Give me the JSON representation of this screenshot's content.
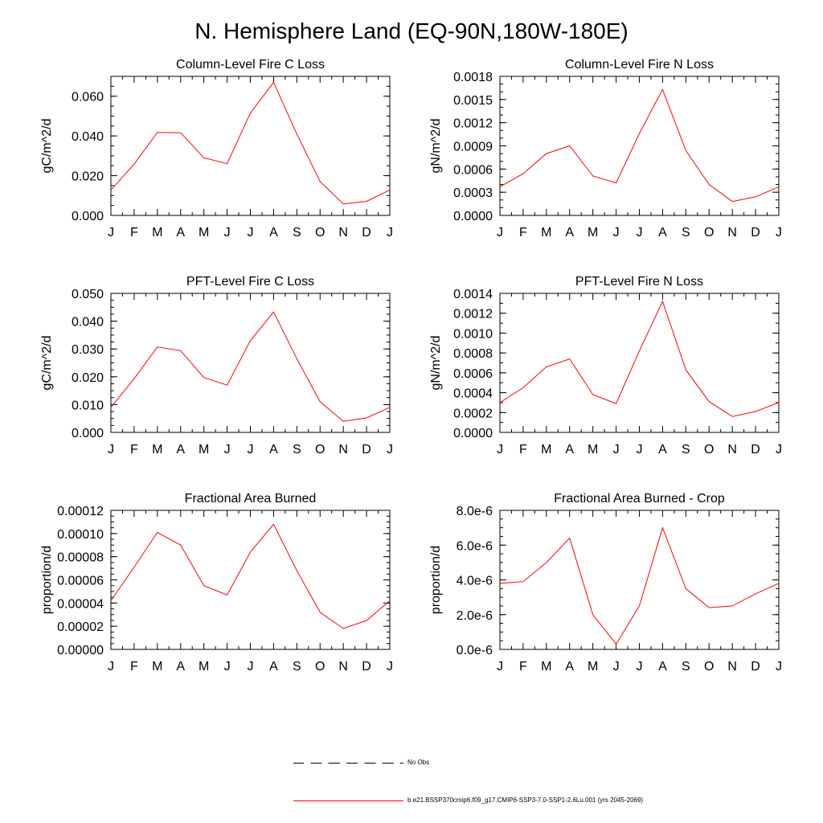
{
  "title": "N. Hemisphere Land (EQ-90N,180W-180E)",
  "months": [
    "J",
    "F",
    "M",
    "A",
    "M",
    "J",
    "J",
    "A",
    "S",
    "O",
    "N",
    "D",
    "J"
  ],
  "colors": {
    "series": "#ff0000",
    "axis": "#000000",
    "obs": "#000000"
  },
  "legend": {
    "obs_label": "No Obs",
    "model_label": "b.e21.BSSP370cmip6.f09_g17.CMIP6-SSP3-7.0-SSP1-2.6Lu.001 (yrs 2045-2069)"
  },
  "chart_data": [
    {
      "type": "line",
      "title": "Column-Level Fire C Loss",
      "ylabel": "gC/m^2/d",
      "ylim": [
        0,
        0.07
      ],
      "yticks": [
        0,
        0.02,
        0.04,
        0.06
      ],
      "yticklabels": [
        "0.000",
        "0.020",
        "0.040",
        "0.060"
      ],
      "yminor": 0.005,
      "categories": [
        "J",
        "F",
        "M",
        "A",
        "M",
        "J",
        "J",
        "A",
        "S",
        "O",
        "N",
        "D",
        "J"
      ],
      "values": [
        0.0128,
        0.0258,
        0.0418,
        0.0416,
        0.029,
        0.026,
        0.0515,
        0.067,
        0.041,
        0.017,
        0.0058,
        0.0071,
        0.0128
      ]
    },
    {
      "type": "line",
      "title": "Column-Level Fire N Loss",
      "ylabel": "gN/m^2/d",
      "ylim": [
        0,
        0.0018
      ],
      "yticks": [
        0,
        0.0003,
        0.0006,
        0.0009,
        0.0012,
        0.0015,
        0.0018
      ],
      "yticklabels": [
        "0.0000",
        "0.0003",
        "0.0006",
        "0.0009",
        "0.0012",
        "0.0015",
        "0.0018"
      ],
      "yminor": 0.0001,
      "categories": [
        "J",
        "F",
        "M",
        "A",
        "M",
        "J",
        "J",
        "A",
        "S",
        "O",
        "N",
        "D",
        "J"
      ],
      "values": [
        0.00037,
        0.00054,
        0.0008,
        0.0009,
        0.00051,
        0.00042,
        0.00106,
        0.00163,
        0.00084,
        0.0004,
        0.00018,
        0.00024,
        0.00037
      ]
    },
    {
      "type": "line",
      "title": "PFT-Level Fire C Loss",
      "ylabel": "gC/m^2/d",
      "ylim": [
        0,
        0.05
      ],
      "yticks": [
        0,
        0.01,
        0.02,
        0.03,
        0.04,
        0.05
      ],
      "yticklabels": [
        "0.000",
        "0.010",
        "0.020",
        "0.030",
        "0.040",
        "0.050"
      ],
      "yminor": 0.0025,
      "categories": [
        "J",
        "F",
        "M",
        "A",
        "M",
        "J",
        "J",
        "A",
        "S",
        "O",
        "N",
        "D",
        "J"
      ],
      "values": [
        0.009,
        0.0193,
        0.0307,
        0.0294,
        0.0197,
        0.017,
        0.033,
        0.0433,
        0.0265,
        0.011,
        0.004,
        0.0052,
        0.009
      ]
    },
    {
      "type": "line",
      "title": "PFT-Level Fire N Loss",
      "ylabel": "gN/m^2/d",
      "ylim": [
        0,
        0.0014
      ],
      "yticks": [
        0,
        0.0002,
        0.0004,
        0.0006,
        0.0008,
        0.001,
        0.0012,
        0.0014
      ],
      "yticklabels": [
        "0.0000",
        "0.0002",
        "0.0004",
        "0.0006",
        "0.0008",
        "0.0010",
        "0.0012",
        "0.0014"
      ],
      "yminor": 0.0001,
      "categories": [
        "J",
        "F",
        "M",
        "A",
        "M",
        "J",
        "J",
        "A",
        "S",
        "O",
        "N",
        "D",
        "J"
      ],
      "values": [
        0.0003,
        0.00045,
        0.00066,
        0.00074,
        0.00038,
        0.00029,
        0.00082,
        0.00132,
        0.00063,
        0.00031,
        0.00016,
        0.00021,
        0.0003
      ]
    },
    {
      "type": "line",
      "title": "Fractional Area Burned",
      "ylabel": "proportion/d",
      "ylim": [
        0,
        0.00012
      ],
      "yticks": [
        0,
        2e-05,
        4e-05,
        6e-05,
        8e-05,
        0.0001,
        0.00012
      ],
      "yticklabels": [
        "0.00000",
        "0.00002",
        "0.00004",
        "0.00006",
        "0.00008",
        "0.00010",
        "0.00012"
      ],
      "yminor": 5e-06,
      "categories": [
        "J",
        "F",
        "M",
        "A",
        "M",
        "J",
        "J",
        "A",
        "S",
        "O",
        "N",
        "D",
        "J"
      ],
      "values": [
        4.2e-05,
        7.1e-05,
        0.000101,
        9e-05,
        5.5e-05,
        4.7e-05,
        8.4e-05,
        0.000108,
        6.8e-05,
        3.2e-05,
        1.8e-05,
        2.5e-05,
        4.2e-05
      ]
    },
    {
      "type": "line",
      "title": "Fractional Area Burned - Crop",
      "ylabel": "proportion/d",
      "ylim": [
        0,
        8e-06
      ],
      "yticks": [
        0,
        2e-06,
        4e-06,
        6e-06,
        8e-06
      ],
      "yticklabels": [
        "0.0e-6",
        "2.0e-6",
        "4.0e-6",
        "6.0e-6",
        "8.0e-6"
      ],
      "yminor": 5e-07,
      "categories": [
        "J",
        "F",
        "M",
        "A",
        "M",
        "J",
        "J",
        "A",
        "S",
        "O",
        "N",
        "D",
        "J"
      ],
      "values": [
        3.8e-06,
        3.9e-06,
        5e-06,
        6.4e-06,
        2e-06,
        3e-07,
        2.5e-06,
        7e-06,
        3.5e-06,
        2.4e-06,
        2.5e-06,
        3.2e-06,
        3.8e-06
      ]
    }
  ]
}
